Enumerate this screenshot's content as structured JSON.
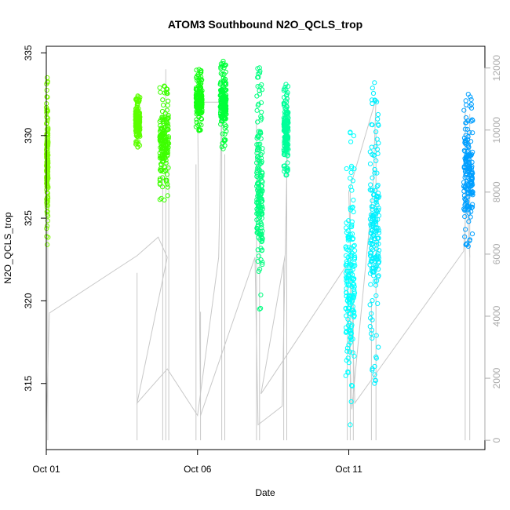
{
  "chart_data": {
    "type": "scatter",
    "title": "ATOM3 Southbound N2O_QCLS_trop",
    "xlabel": "Date",
    "ylabel": "N2O_QCLS_trop",
    "xlim": [
      0.0,
      14.5
    ],
    "ylim": [
      311.0,
      335.4
    ],
    "yticks": [
      315,
      320,
      325,
      330,
      335
    ],
    "xticks": [
      {
        "label": "Oct 01",
        "value": 0
      },
      {
        "label": "Oct 06",
        "value": 5
      },
      {
        "label": "Oct 11",
        "value": 10
      }
    ],
    "y2lim": [
      -300,
      12700
    ],
    "y2ticks": [
      0,
      2000,
      4000,
      6000,
      8000,
      10000,
      12000
    ],
    "altitude_color": "#c8c8c8",
    "series": [
      {
        "color": "#7fff00",
        "x_start": 0.0,
        "x_end": 0.06,
        "y_min": 323.4,
        "y_max": 333.5
      },
      {
        "color": "#5cff00",
        "x_start": 2.95,
        "x_end": 3.1,
        "y_min": 329.3,
        "y_max": 332.4
      },
      {
        "color": "#3dff00",
        "x_start": 3.75,
        "x_end": 4.05,
        "y_min": 326.1,
        "y_max": 333.0
      },
      {
        "color": "#14ff14",
        "x_start": 4.95,
        "x_end": 5.15,
        "y_min": 330.3,
        "y_max": 334.0
      },
      {
        "color": "#00ff3a",
        "x_start": 5.75,
        "x_end": 5.95,
        "y_min": 329.2,
        "y_max": 334.5
      },
      {
        "color": "#00ff80",
        "x_start": 6.95,
        "x_end": 7.15,
        "y_min": 319.5,
        "y_max": 334.1
      },
      {
        "color": "#00ff9a",
        "x_start": 7.85,
        "x_end": 8.0,
        "y_min": 327.6,
        "y_max": 333.1
      },
      {
        "color": "#00ffff",
        "x_start": 9.9,
        "x_end": 10.2,
        "y_min": 312.5,
        "y_max": 330.2
      },
      {
        "color": "#00f0ff",
        "x_start": 10.7,
        "x_end": 11.0,
        "y_min": 315.0,
        "y_max": 333.2
      },
      {
        "color": "#009fff",
        "x_start": 13.8,
        "x_end": 14.1,
        "y_min": 323.3,
        "y_max": 332.5
      }
    ],
    "altitude_path": [
      [
        0.0,
        500
      ],
      [
        0.1,
        4100
      ],
      [
        3.0,
        5950
      ],
      [
        3.7,
        6550
      ],
      [
        4.0,
        5900
      ],
      [
        3.0,
        1200
      ],
      [
        4.0,
        2300
      ],
      [
        5.0,
        800
      ],
      [
        5.7,
        5900
      ],
      [
        5.8,
        10900
      ],
      [
        5.0,
        10900
      ],
      [
        5.1,
        800
      ],
      [
        6.9,
        5900
      ],
      [
        7.0,
        500
      ],
      [
        7.8,
        1100
      ],
      [
        8.0,
        11100
      ],
      [
        7.9,
        6000
      ],
      [
        7.1,
        1500
      ],
      [
        9.9,
        5600
      ],
      [
        10.0,
        3800
      ],
      [
        10.1,
        1000
      ],
      [
        10.8,
        8100
      ],
      [
        10.9,
        11000
      ],
      [
        10.0,
        8000
      ],
      [
        10.2,
        1200
      ],
      [
        13.8,
        6100
      ],
      [
        13.9,
        8000
      ],
      [
        14.0,
        5900
      ]
    ],
    "altitude_spikes": [
      0.05,
      3.0,
      3.85,
      3.95,
      4.05,
      4.95,
      5.1,
      5.8,
      5.9,
      6.95,
      7.05,
      7.85,
      7.95,
      9.95,
      10.05,
      10.15,
      10.75,
      10.9,
      13.85,
      14.0
    ]
  }
}
